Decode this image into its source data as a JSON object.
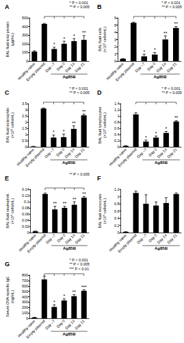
{
  "chart_data": [
    {
      "type": "bar",
      "title": "A",
      "y_label": "BAL fluid total protein (µg/mL)",
      "categories": [
        "Healthy naive",
        "Empty plasmid",
        "Day –7",
        "Day 0",
        "Day 14",
        "Day 21"
      ],
      "group": {
        "label": "Ag85B",
        "from": "Day –7",
        "to": "Day 21"
      },
      "values": [
        110,
        430,
        140,
        200,
        230,
        245
      ],
      "errors": [
        10,
        5,
        20,
        30,
        30,
        50
      ],
      "significance": [
        null,
        null,
        "*",
        "*",
        "*",
        "**"
      ],
      "annotations": [
        "* P < 0.001",
        "** P < 0.005"
      ],
      "color": "#000000",
      "grid": false,
      "ylim": [
        0,
        500
      ],
      "yticks": [
        0,
        100,
        200,
        300,
        400,
        500
      ]
    },
    {
      "type": "bar",
      "title": "B",
      "y_label": "BAL fluid cells (×10⁵ cells/mL)",
      "categories": [
        "Healthy naive",
        "Empty plasmid",
        "Day –7",
        "Day 0",
        "Day 14",
        "Day 21"
      ],
      "group": {
        "label": "Ag85B",
        "from": "Day –7",
        "to": "Day 21"
      },
      "values": [
        0.3,
        5.3,
        0.65,
        0.9,
        3.0,
        4.6
      ],
      "errors": [
        0.05,
        0.1,
        0.3,
        0.3,
        0.5,
        0.2
      ],
      "significance": [
        null,
        null,
        "*",
        "*",
        "**",
        "**"
      ],
      "annotations": [
        "* P < 0.001",
        "** P < 0.005"
      ],
      "color": "#000000",
      "grid": false,
      "ylim": [
        0,
        6
      ],
      "yticks": [
        0,
        1,
        2,
        3,
        4,
        5,
        6
      ]
    },
    {
      "type": "bar",
      "title": "C",
      "y_label": "BAL fluid eosinophils (×10⁵ cells/mL)",
      "categories": [
        "Healthy naive",
        "Empty plasmid",
        "Day –7",
        "Day 0",
        "Day 14",
        "Day 21"
      ],
      "group": {
        "label": "Ag85B",
        "from": "Day –7",
        "to": "Day 21"
      },
      "values": [
        0.03,
        3.1,
        0.75,
        0.78,
        1.45,
        2.55
      ],
      "errors": [
        0.01,
        0.05,
        0.2,
        0.25,
        0.25,
        0.1
      ],
      "significance": [
        null,
        null,
        "*",
        "*",
        "**",
        "**"
      ],
      "annotations": [
        "* P < 0.001",
        "** P < 0.005"
      ],
      "color": "#000000",
      "grid": false,
      "ylim": [
        0,
        3.5
      ],
      "yticks": [
        0,
        0.5,
        1,
        1.5,
        2,
        2.5,
        3,
        3.5
      ]
    },
    {
      "type": "bar",
      "title": "D",
      "y_label": "BAL fluid lymphocytes (×10⁵ cells/mL)",
      "categories": [
        "Healthy naive",
        "Empty plasmid",
        "Day –7",
        "Day 0",
        "Day 14",
        "Day 21"
      ],
      "group": {
        "label": "Ag85B",
        "from": "Day –7",
        "to": "Day 21"
      },
      "values": [
        0.03,
        1.05,
        0.17,
        0.3,
        0.45,
        0.82
      ],
      "errors": [
        0.01,
        0.05,
        0.05,
        0.05,
        0.05,
        0.03
      ],
      "significance": [
        null,
        null,
        "*",
        "*",
        "*",
        "**"
      ],
      "annotations": [
        "* P < 0.001",
        "** P < 0.005"
      ],
      "color": "#000000",
      "grid": false,
      "ylim": [
        0,
        1.4
      ],
      "yticks": [
        0,
        0.2,
        0.4,
        0.6,
        0.8,
        1,
        1.2,
        1.4
      ]
    },
    {
      "type": "bar",
      "title": "E",
      "y_label": "BAL fluid neutrophils (×10⁵ cells/mL)",
      "categories": [
        "Healthy naive",
        "Empty plasmid",
        "Day –7",
        "Day 0",
        "Day 14",
        "Day 21"
      ],
      "group": {
        "label": "Ag85B",
        "from": "Day –7",
        "to": "Day 21"
      },
      "values": [
        0.004,
        0.125,
        0.075,
        0.08,
        0.09,
        0.113
      ],
      "errors": [
        0.001,
        0.003,
        0.01,
        0.005,
        0.01,
        0.004
      ],
      "significance": [
        null,
        null,
        "**",
        "**",
        "**",
        "**"
      ],
      "annotations": [
        "** P < 0.005"
      ],
      "color": "#000000",
      "grid": false,
      "ylim": [
        0,
        0.14
      ],
      "yticks": [
        0,
        0.02,
        0.04,
        0.06,
        0.08,
        0.1,
        0.12,
        0.14
      ]
    },
    {
      "type": "bar",
      "title": "F",
      "y_label": "BAL fluid monocytes (×10⁵ cells/mL)",
      "categories": [
        "Healthy naive",
        "Empty plasmid",
        "Day –7",
        "Day 0",
        "Day 14",
        "Day 21"
      ],
      "group": {
        "label": "Ag85B",
        "from": "Day –7",
        "to": "Day 21"
      },
      "values": [
        0.02,
        1.1,
        0.8,
        0.75,
        0.82,
        1.07
      ],
      "errors": [
        0.005,
        0.05,
        0.25,
        0.1,
        0.15,
        0.03
      ],
      "color": "#000000",
      "grid": false,
      "ylim": [
        0,
        1.2
      ],
      "yticks": [
        0,
        0.2,
        0.4,
        0.6,
        0.8,
        1,
        1.2
      ]
    },
    {
      "type": "bar",
      "title": "G",
      "y_label": "Serum OVA-specific IgE (ng/mL)",
      "categories": [
        "Healthy naive",
        "Empty plasmid",
        "Day –7",
        "Day 0",
        "Day 14",
        "Day 21"
      ],
      "group": {
        "label": "Ag85B",
        "from": "Day –7",
        "to": "Day 21"
      },
      "values": [
        15,
        720,
        210,
        330,
        410,
        510
      ],
      "errors": [
        5,
        60,
        40,
        30,
        30,
        20
      ],
      "significance": [
        null,
        null,
        "*",
        "*",
        "**",
        "***"
      ],
      "annotations": [
        "* P < 0.001",
        "** P < 0.005",
        "*** P < 0.01"
      ],
      "color": "#000000",
      "grid": false,
      "ylim": [
        0,
        800
      ],
      "yticks": [
        0,
        100,
        200,
        300,
        400,
        500,
        600,
        700,
        800
      ]
    }
  ]
}
